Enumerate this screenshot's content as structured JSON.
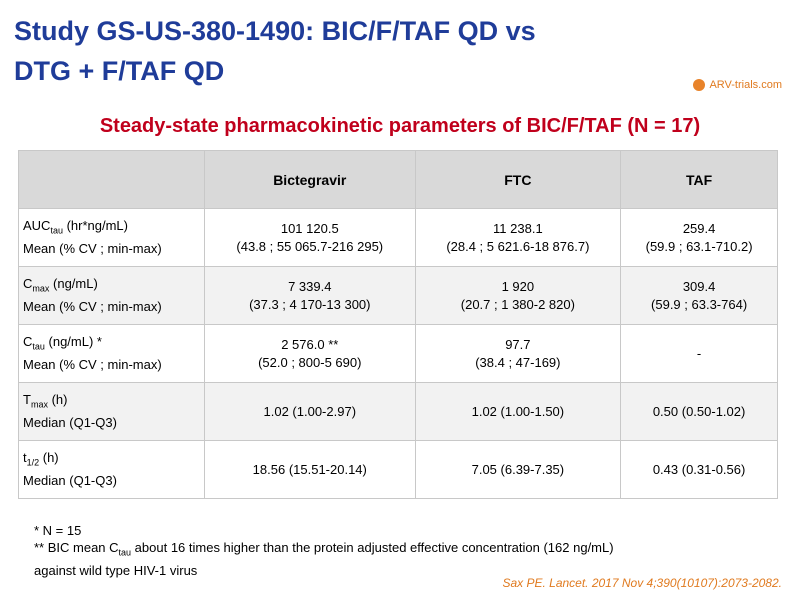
{
  "header": {
    "title_lines": [
      "Study GS-US-380-1490: BIC/F/TAF QD vs",
      "DTG + F/TAF QD"
    ],
    "logo": "ARV-trials.com"
  },
  "subtitle": "Steady-state pharmacokinetic parameters of BIC/F/TAF (N = 17)",
  "table": {
    "columns": [
      "Bictegravir",
      "FTC",
      "TAF"
    ],
    "rows": [
      {
        "label": {
          "main": "AUC",
          "sub": "tau",
          "unit": " (hr*ng/mL)",
          "stat": "Mean (% CV ; min-max)"
        },
        "cells": [
          [
            "101 120.5",
            "(43.8 ; 55 065.7-216 295)"
          ],
          [
            "11 238.1",
            "(28.4 ; 5 621.6-18 876.7)"
          ],
          [
            "259.4",
            "(59.9 ; 63.1-710.2)"
          ]
        ]
      },
      {
        "label": {
          "main": "C",
          "sub": "max",
          "unit": " (ng/mL)",
          "stat": "Mean (% CV ; min-max)"
        },
        "cells": [
          [
            "7 339.4",
            "(37.3 ; 4 170-13 300)"
          ],
          [
            "1 920",
            "(20.7 ; 1 380-2 820)"
          ],
          [
            "309.4",
            "(59.9 ; 63.3-764)"
          ]
        ]
      },
      {
        "label": {
          "main": "C",
          "sub": "tau",
          "unit": " (ng/mL) *",
          "stat": "Mean (% CV ; min-max)"
        },
        "cells": [
          [
            "2 576.0 **",
            "(52.0 ; 800-5 690)"
          ],
          [
            "97.7",
            "(38.4 ; 47-169)"
          ],
          [
            "-"
          ]
        ]
      },
      {
        "label": {
          "main": "T",
          "sub": "max",
          "unit": " (h)",
          "stat": "Median (Q1-Q3)"
        },
        "cells": [
          [
            "1.02 (1.00-2.97)"
          ],
          [
            "1.02 (1.00-1.50)"
          ],
          [
            "0.50 (0.50-1.02)"
          ]
        ]
      },
      {
        "label": {
          "main": "t",
          "sub": "1/2",
          "unit": " (h)",
          "stat": "Median (Q1-Q3)"
        },
        "cells": [
          [
            "18.56 (15.51-20.14)"
          ],
          [
            "7.05 (6.39-7.35)"
          ],
          [
            "0.43 (0.31-0.56)"
          ]
        ]
      }
    ]
  },
  "footnotes": {
    "first": "* N = 15",
    "second": {
      "main": "** BIC mean C",
      "sub": "tau",
      "rest": " about 16 times higher than the protein adjusted effective concentration (162 ng/mL)",
      "line2": "against wild type HIV-1 virus"
    }
  },
  "citation": "Sax PE. Lancet. 2017 Nov 4;390(10107):2073-2082."
}
